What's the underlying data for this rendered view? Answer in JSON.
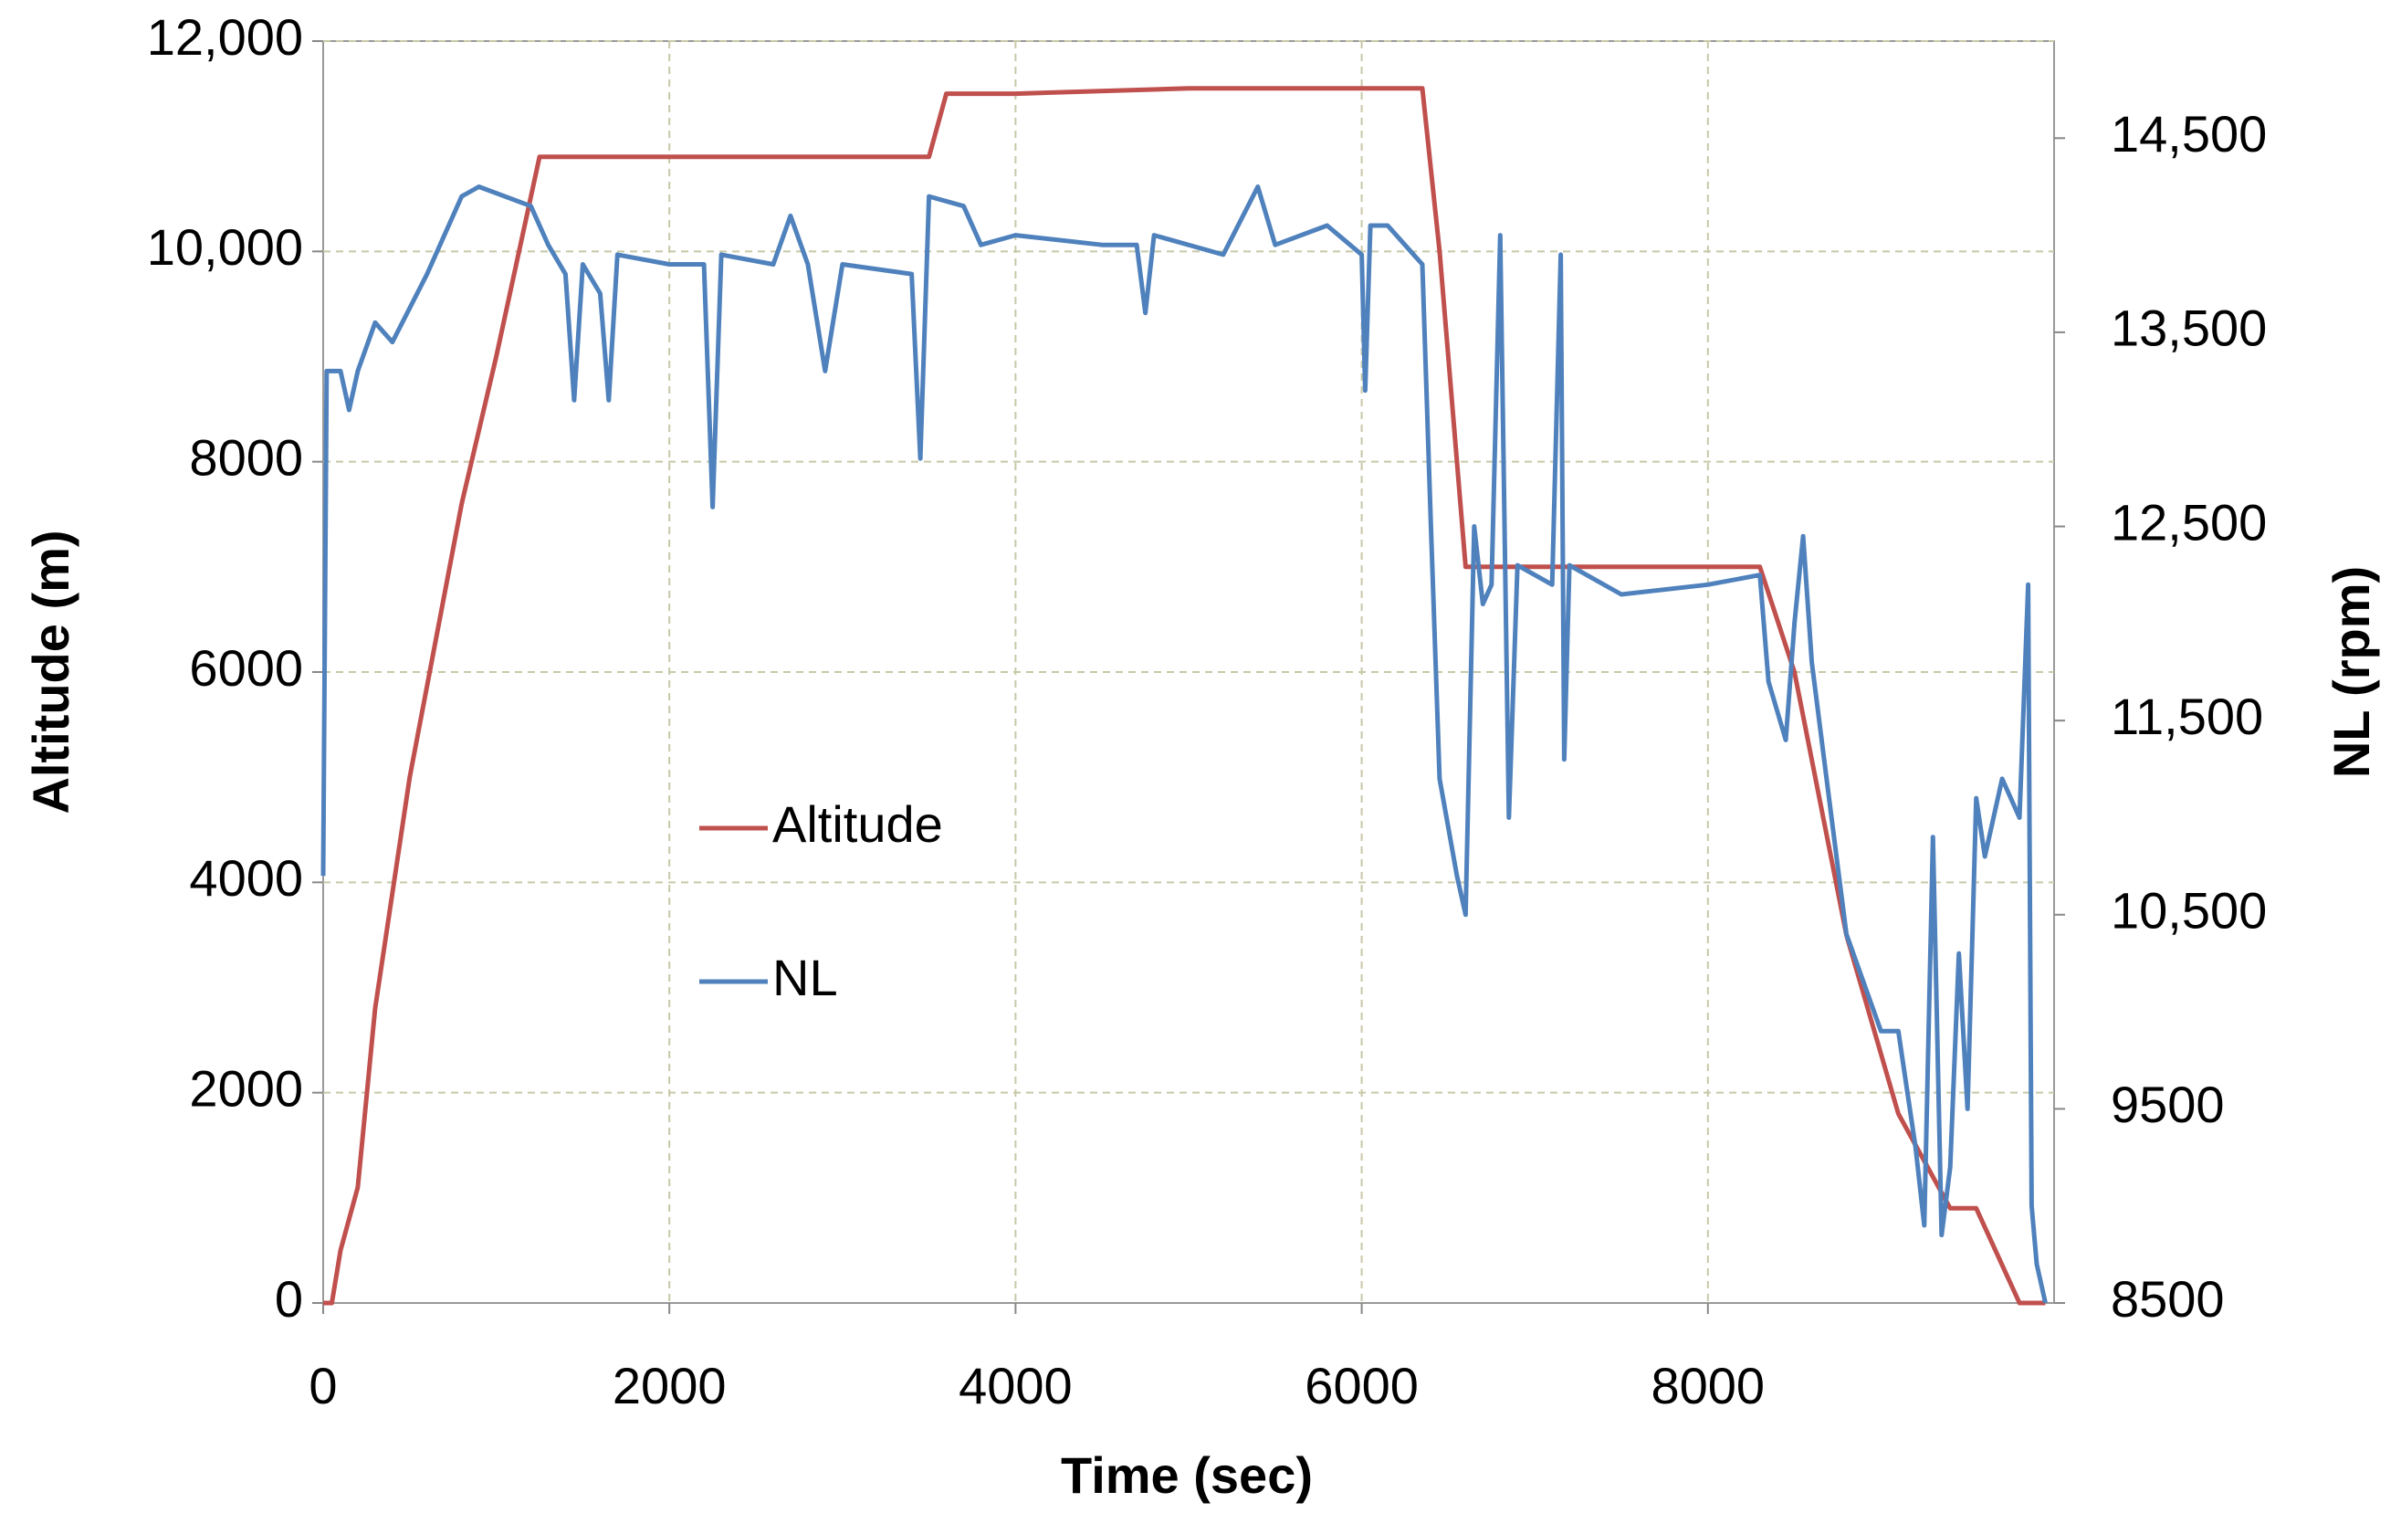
{
  "chart_data": {
    "type": "line",
    "x_label": "Time (sec)",
    "y_label": "Altitude (m)",
    "y2_label": "NL (rpm)",
    "xlim": [
      0,
      10000
    ],
    "xticks": [
      0,
      2000,
      4000,
      6000,
      8000
    ],
    "ylim": [
      0,
      12000
    ],
    "yticks": [
      0,
      2000,
      4000,
      6000,
      8000,
      {
        "value": 10000,
        "label": "10,000"
      },
      {
        "value": 12000,
        "label": "12,000"
      }
    ],
    "y2lim": [
      8500,
      15000
    ],
    "y2ticks": [
      8500,
      9500,
      {
        "value": 10500,
        "label": "10,500"
      },
      {
        "value": 11500,
        "label": "11,500"
      },
      {
        "value": 12500,
        "label": "12,500"
      },
      {
        "value": 13500,
        "label": "13,500"
      },
      {
        "value": 14500,
        "label": "14,500"
      }
    ],
    "grid": true,
    "legend": "center-left",
    "series": [
      {
        "name": "Altitude",
        "color": "#c0504d",
        "x": [
          0,
          50,
          100,
          200,
          300,
          500,
          800,
          1000,
          1250,
          2000,
          3000,
          3500,
          3600,
          4000,
          5000,
          6000,
          6350,
          6450,
          6600,
          8300,
          8500,
          8800,
          9100,
          9400,
          9550,
          9800,
          9950
        ],
        "values": [
          0,
          0,
          500,
          1100,
          2800,
          5000,
          7600,
          9000,
          10900,
          10900,
          10900,
          10900,
          11500,
          11500,
          11550,
          11550,
          11550,
          10000,
          7000,
          7000,
          6000,
          3500,
          1800,
          900,
          900,
          0,
          0
        ]
      },
      {
        "name": "NL",
        "color": "#4f81bd",
        "x": [
          0,
          20,
          100,
          150,
          200,
          300,
          400,
          600,
          800,
          900,
          1200,
          1300,
          1400,
          1450,
          1500,
          1600,
          1650,
          1700,
          2000,
          2200,
          2250,
          2300,
          2600,
          2700,
          2800,
          2900,
          3000,
          3400,
          3450,
          3500,
          3700,
          3800,
          4000,
          4500,
          4700,
          4750,
          4800,
          5200,
          5400,
          5500,
          5800,
          6000,
          6020,
          6050,
          6150,
          6300,
          6350,
          6400,
          6450,
          6550,
          6600,
          6650,
          6700,
          6750,
          6800,
          6850,
          6900,
          7100,
          7150,
          7170,
          7200,
          7500,
          8000,
          8300,
          8350,
          8450,
          8500,
          8550,
          8600,
          8700,
          8800,
          9000,
          9100,
          9200,
          9250,
          9300,
          9350,
          9400,
          9450,
          9500,
          9550,
          9600,
          9700,
          9800,
          9850,
          9870,
          9900,
          9950
        ],
        "values": [
          10700,
          13300,
          13300,
          13100,
          13300,
          13550,
          13450,
          13800,
          14200,
          14250,
          14150,
          13950,
          13800,
          13150,
          13850,
          13700,
          13150,
          13900,
          13850,
          13850,
          12600,
          13900,
          13850,
          14100,
          13850,
          13300,
          13850,
          13800,
          12850,
          14200,
          14150,
          13950,
          14000,
          13950,
          13950,
          13600,
          14000,
          13900,
          14250,
          13950,
          14050,
          13900,
          13200,
          14050,
          14050,
          13900,
          13850,
          12500,
          11200,
          10700,
          10500,
          12500,
          12100,
          12200,
          14000,
          11000,
          12300,
          12200,
          13900,
          11300,
          12300,
          12150,
          12200,
          12250,
          11700,
          11400,
          12000,
          12450,
          11800,
          11100,
          10400,
          9900,
          9900,
          9300,
          8900,
          10900,
          8850,
          9200,
          10300,
          9500,
          11100,
          10800,
          11200,
          11000,
          12200,
          9000,
          8700,
          8500
        ],
        "axis": "y2"
      }
    ]
  }
}
